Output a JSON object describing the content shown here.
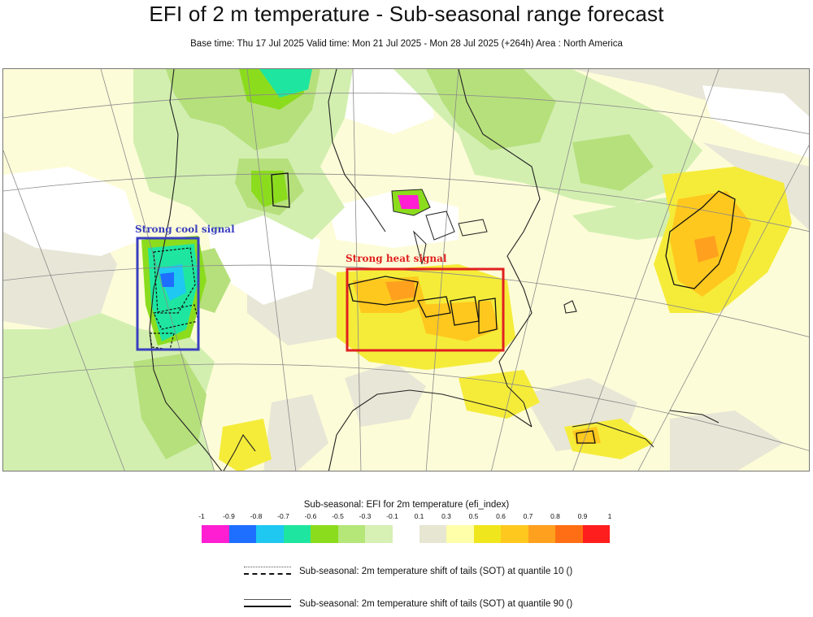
{
  "title": "EFI of 2 m temperature - Sub-seasonal range forecast",
  "subtitle": "Base time: Thu 17 Jul 2025 Valid time: Mon 21 Jul 2025 - Mon 28 Jul 2025 (+264h) Area : North America",
  "annotations": {
    "cool": {
      "label": "Strong cool signal",
      "color": "#3a3fbf"
    },
    "heat": {
      "label": "Strong heat signal",
      "color": "#e02020"
    }
  },
  "legend": {
    "title": "Sub-seasonal: EFI for 2m temperature (efi_index)",
    "ticks": [
      "-1",
      "-0.9",
      "-0.8",
      "-0.7",
      "-0.6",
      "-0.5",
      "-0.3",
      "-0.1",
      "0.1",
      "0.3",
      "0.5",
      "0.6",
      "0.7",
      "0.8",
      "0.9",
      "1"
    ],
    "negative_colors": [
      "#ff1ed2",
      "#1e6eff",
      "#1ec8f0",
      "#1ee6a0",
      "#8cdc1e",
      "#b4e678",
      "#d7f0b4"
    ],
    "positive_colors": [
      "#e6e6d2",
      "#ffffaa",
      "#f0e61e",
      "#ffc81e",
      "#ffa01e",
      "#ff6e14",
      "#ff1e1e"
    ]
  },
  "sot": {
    "q10": "Sub-seasonal: 2m temperature shift of tails (SOT) at quantile 10 ()",
    "q90": "Sub-seasonal: 2m temperature shift of tails (SOT) at quantile 90 ()"
  }
}
